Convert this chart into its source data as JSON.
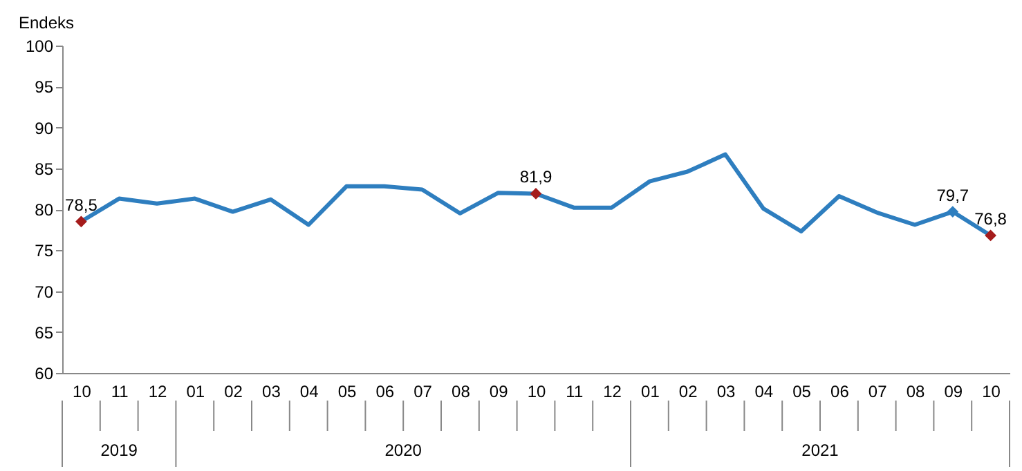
{
  "chart_data": {
    "type": "line",
    "ylabel": "Endeks",
    "categories": [
      "10",
      "11",
      "12",
      "01",
      "02",
      "03",
      "04",
      "05",
      "06",
      "07",
      "08",
      "09",
      "10",
      "11",
      "12",
      "01",
      "02",
      "03",
      "04",
      "05",
      "06",
      "07",
      "08",
      "09",
      "10"
    ],
    "series": [
      {
        "color": "#2e7ebf",
        "values": [
          78.5,
          81.3,
          80.7,
          81.3,
          79.7,
          81.2,
          78.1,
          82.8,
          82.8,
          82.4,
          79.5,
          82.0,
          81.9,
          80.2,
          80.2,
          83.4,
          84.6,
          86.7,
          80.1,
          77.3,
          81.6,
          79.6,
          78.1,
          79.7,
          76.8
        ],
        "value_labels": [
          "78,5",
          null,
          null,
          null,
          null,
          null,
          null,
          null,
          null,
          null,
          null,
          null,
          "81,9",
          null,
          null,
          null,
          null,
          null,
          null,
          null,
          null,
          null,
          null,
          "79,7",
          "76,8"
        ],
        "colors": [
          "#a51c1c",
          null,
          null,
          null,
          null,
          null,
          null,
          null,
          null,
          null,
          null,
          null,
          "#a51c1c",
          null,
          null,
          null,
          null,
          null,
          null,
          null,
          null,
          null,
          null,
          "#2e7ebf",
          "#a51c1c"
        ]
      }
    ],
    "ylim": [
      60,
      100
    ],
    "yticks": [
      60,
      65,
      70,
      75,
      80,
      85,
      90,
      95,
      100
    ],
    "line_style": "solid",
    "grid": false,
    "annotations": [
      "2019",
      "2020",
      "2021"
    ]
  }
}
